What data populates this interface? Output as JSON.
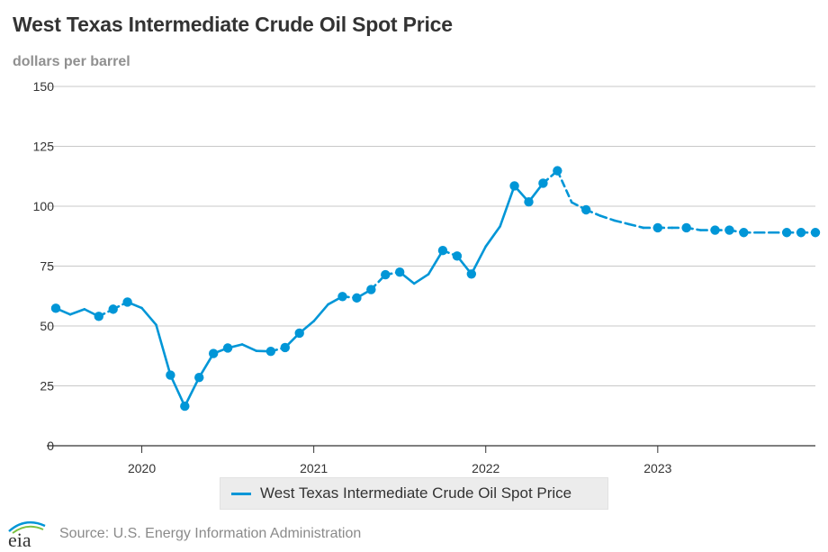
{
  "header": {
    "title": "West Texas Intermediate Crude Oil Spot Price",
    "subtitle": "dollars per barrel"
  },
  "footer": {
    "source": "Source: U.S. Energy Information Administration",
    "logo_text": "eia"
  },
  "colors": {
    "series": "#0096d7",
    "grid": "#c8c8c8",
    "axis": "#333333"
  },
  "chart_data": {
    "type": "line",
    "title": "West Texas Intermediate Crude Oil Spot Price",
    "ylabel": "dollars per barrel",
    "ylim": [
      0,
      150
    ],
    "yticks": [
      0,
      25,
      50,
      75,
      100,
      125,
      150
    ],
    "xlim": [
      "2019-07",
      "2023-12"
    ],
    "xticks": [
      "2020",
      "2021",
      "2022",
      "2023"
    ],
    "grid": true,
    "legend": "bottom-center",
    "series": [
      {
        "name": "West Texas Intermediate Crude Oil Spot Price",
        "points": [
          {
            "x": "2019-07",
            "y": 57.4,
            "marker": true,
            "dash_after": false
          },
          {
            "x": "2019-08",
            "y": 54.8,
            "marker": false,
            "dash_after": false
          },
          {
            "x": "2019-09",
            "y": 57.0,
            "marker": false,
            "dash_after": false
          },
          {
            "x": "2019-10",
            "y": 54.0,
            "marker": true,
            "dash_after": true
          },
          {
            "x": "2019-11",
            "y": 57.0,
            "marker": true,
            "dash_after": true
          },
          {
            "x": "2019-12",
            "y": 60.0,
            "marker": true,
            "dash_after": false
          },
          {
            "x": "2020-01",
            "y": 57.5,
            "marker": false,
            "dash_after": false
          },
          {
            "x": "2020-02",
            "y": 50.5,
            "marker": false,
            "dash_after": false
          },
          {
            "x": "2020-03",
            "y": 29.5,
            "marker": true,
            "dash_after": false
          },
          {
            "x": "2020-04",
            "y": 16.5,
            "marker": true,
            "dash_after": false
          },
          {
            "x": "2020-05",
            "y": 28.5,
            "marker": true,
            "dash_after": false
          },
          {
            "x": "2020-06",
            "y": 38.5,
            "marker": true,
            "dash_after": false
          },
          {
            "x": "2020-07",
            "y": 40.8,
            "marker": true,
            "dash_after": false
          },
          {
            "x": "2020-08",
            "y": 42.3,
            "marker": false,
            "dash_after": false
          },
          {
            "x": "2020-09",
            "y": 39.6,
            "marker": false,
            "dash_after": false
          },
          {
            "x": "2020-10",
            "y": 39.4,
            "marker": true,
            "dash_after": true
          },
          {
            "x": "2020-11",
            "y": 41.0,
            "marker": true,
            "dash_after": false
          },
          {
            "x": "2020-12",
            "y": 47.0,
            "marker": true,
            "dash_after": false
          },
          {
            "x": "2021-01",
            "y": 52.0,
            "marker": false,
            "dash_after": false
          },
          {
            "x": "2021-02",
            "y": 59.0,
            "marker": false,
            "dash_after": false
          },
          {
            "x": "2021-03",
            "y": 62.3,
            "marker": true,
            "dash_after": true
          },
          {
            "x": "2021-04",
            "y": 61.7,
            "marker": true,
            "dash_after": false
          },
          {
            "x": "2021-05",
            "y": 65.2,
            "marker": true,
            "dash_after": true
          },
          {
            "x": "2021-06",
            "y": 71.4,
            "marker": true,
            "dash_after": true
          },
          {
            "x": "2021-07",
            "y": 72.5,
            "marker": true,
            "dash_after": false
          },
          {
            "x": "2021-08",
            "y": 67.7,
            "marker": false,
            "dash_after": false
          },
          {
            "x": "2021-09",
            "y": 71.6,
            "marker": false,
            "dash_after": false
          },
          {
            "x": "2021-10",
            "y": 81.5,
            "marker": true,
            "dash_after": true
          },
          {
            "x": "2021-11",
            "y": 79.2,
            "marker": true,
            "dash_after": false
          },
          {
            "x": "2021-12",
            "y": 71.7,
            "marker": true,
            "dash_after": false
          },
          {
            "x": "2022-01",
            "y": 83.2,
            "marker": false,
            "dash_after": false
          },
          {
            "x": "2022-02",
            "y": 91.6,
            "marker": false,
            "dash_after": false
          },
          {
            "x": "2022-03",
            "y": 108.5,
            "marker": true,
            "dash_after": false
          },
          {
            "x": "2022-04",
            "y": 101.8,
            "marker": true,
            "dash_after": false
          },
          {
            "x": "2022-05",
            "y": 109.6,
            "marker": true,
            "dash_after": true
          },
          {
            "x": "2022-06",
            "y": 114.8,
            "marker": true,
            "dash_after": true
          },
          {
            "x": "2022-07",
            "y": 101.6,
            "marker": false,
            "dash_after": true
          },
          {
            "x": "2022-08",
            "y": 98.5,
            "marker": true,
            "dash_after": true
          },
          {
            "x": "2022-09",
            "y": 96.0,
            "marker": false,
            "dash_after": true
          },
          {
            "x": "2022-10",
            "y": 94.0,
            "marker": false,
            "dash_after": true
          },
          {
            "x": "2022-11",
            "y": 92.5,
            "marker": false,
            "dash_after": true
          },
          {
            "x": "2022-12",
            "y": 91.0,
            "marker": false,
            "dash_after": true
          },
          {
            "x": "2023-01",
            "y": 91.0,
            "marker": true,
            "dash_after": true
          },
          {
            "x": "2023-02",
            "y": 91.0,
            "marker": false,
            "dash_after": true
          },
          {
            "x": "2023-03",
            "y": 91.0,
            "marker": true,
            "dash_after": true
          },
          {
            "x": "2023-04",
            "y": 90.0,
            "marker": false,
            "dash_after": true
          },
          {
            "x": "2023-05",
            "y": 90.0,
            "marker": true,
            "dash_after": true
          },
          {
            "x": "2023-06",
            "y": 90.0,
            "marker": true,
            "dash_after": true
          },
          {
            "x": "2023-07",
            "y": 89.0,
            "marker": true,
            "dash_after": true
          },
          {
            "x": "2023-08",
            "y": 89.0,
            "marker": false,
            "dash_after": true
          },
          {
            "x": "2023-09",
            "y": 89.0,
            "marker": false,
            "dash_after": true
          },
          {
            "x": "2023-10",
            "y": 89.0,
            "marker": true,
            "dash_after": true
          },
          {
            "x": "2023-11",
            "y": 89.0,
            "marker": true,
            "dash_after": true
          },
          {
            "x": "2023-12",
            "y": 89.0,
            "marker": true,
            "dash_after": false
          }
        ]
      }
    ]
  }
}
